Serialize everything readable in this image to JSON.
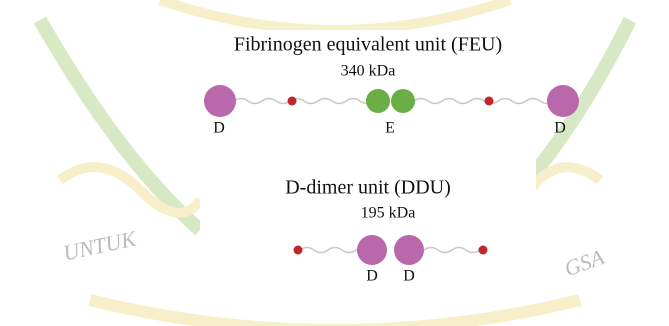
{
  "watermark": {
    "left": "UNTUK",
    "right": "GSA"
  },
  "feu": {
    "title": "Fibrinogen equivalent unit (FEU)",
    "mass": "340 kDa",
    "labels": [
      "D",
      "E",
      "D"
    ]
  },
  "ddu": {
    "title": "D-dimer unit (DDU)",
    "mass": "195 kDa",
    "labels": [
      "D",
      "D"
    ]
  }
}
